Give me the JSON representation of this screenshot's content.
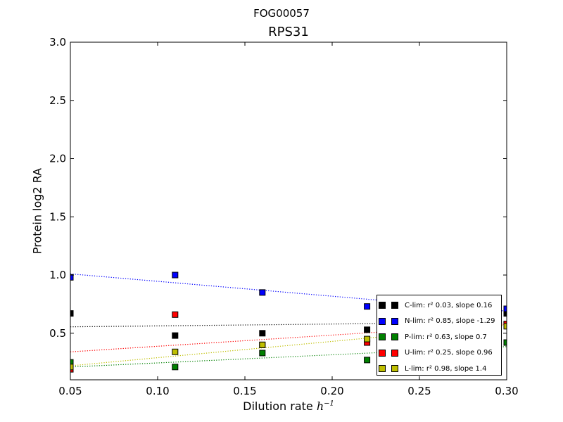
{
  "figure": {
    "suptitle": "FOG00057"
  },
  "chart_data": {
    "type": "scatter",
    "title": "RPS31",
    "xlabel": "Dilution rate",
    "xlabel_math": "h",
    "xlabel_exp": "−1",
    "ylabel": "Protein log2 RA",
    "xlim": [
      0.05,
      0.3
    ],
    "ylim": [
      0.1,
      3.0
    ],
    "xticks": [
      "0.05",
      "0.10",
      "0.15",
      "0.20",
      "0.25",
      "0.30"
    ],
    "xtick_values": [
      0.05,
      0.1,
      0.15,
      0.2,
      0.25,
      0.3
    ],
    "yticks": [
      "0.5",
      "1.0",
      "1.5",
      "2.0",
      "2.5",
      "3.0"
    ],
    "ytick_values": [
      0.5,
      1.0,
      1.5,
      2.0,
      2.5,
      3.0
    ],
    "grid": false,
    "legend_position": "lower-right",
    "series": [
      {
        "name": "C-lim",
        "color": "#000000",
        "r2": "0.03",
        "slope": "0.16",
        "legend_text": "C-lim: r² 0.03, slope 0.16",
        "x": [
          0.05,
          0.11,
          0.16,
          0.22,
          0.3
        ],
        "y": [
          0.67,
          0.48,
          0.5,
          0.53,
          0.67
        ],
        "fit_y": [
          0.555,
          0.595
        ]
      },
      {
        "name": "N-lim",
        "color": "#0000ff",
        "r2": "0.85",
        "slope": "-1.29",
        "legend_text": "N-lim: r² 0.85, slope -1.29",
        "x": [
          0.05,
          0.11,
          0.16,
          0.22,
          0.3
        ],
        "y": [
          0.98,
          1.0,
          0.85,
          0.73,
          0.71
        ],
        "fit_y": [
          1.01,
          0.69
        ]
      },
      {
        "name": "P-lim",
        "color": "#008000",
        "r2": "0.63",
        "slope": "0.7",
        "legend_text": "P-lim: r² 0.63, slope 0.7",
        "x": [
          0.05,
          0.11,
          0.16,
          0.22,
          0.3
        ],
        "y": [
          0.25,
          0.21,
          0.33,
          0.27,
          0.42
        ],
        "fit_y": [
          0.21,
          0.385
        ]
      },
      {
        "name": "U-lim",
        "color": "#ff0000",
        "r2": "0.25",
        "slope": "0.96",
        "legend_text": "U-lim: r² 0.25, slope 0.96",
        "x": [
          0.05,
          0.11,
          0.16,
          0.22,
          0.3
        ],
        "y": [
          0.19,
          0.66,
          0.4,
          0.42,
          0.58
        ],
        "fit_y": [
          0.34,
          0.58
        ]
      },
      {
        "name": "L-lim",
        "color": "#bfbf00",
        "r2": "0.98",
        "slope": "1.4",
        "legend_text": "L-lim: r² 0.98, slope 1.4",
        "x": [
          0.05,
          0.11,
          0.16,
          0.22,
          0.3
        ],
        "y": [
          0.21,
          0.34,
          0.4,
          0.45,
          0.56
        ],
        "fit_y": [
          0.22,
          0.57
        ]
      }
    ]
  }
}
